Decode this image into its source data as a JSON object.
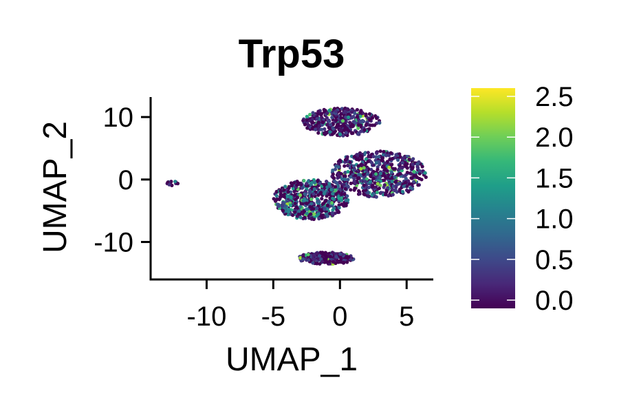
{
  "chart_data": {
    "type": "scatter",
    "title": "Trp53",
    "xlabel": "UMAP_1",
    "ylabel": "UMAP_2",
    "xlim": [
      -14.2,
      7
    ],
    "ylim": [
      -16,
      13.2
    ],
    "xticks": [
      -10,
      -5,
      0,
      5
    ],
    "xtick_labels": [
      "-10",
      "-5",
      "0",
      "5"
    ],
    "yticks": [
      10,
      0,
      -10
    ],
    "ytick_labels": [
      "10",
      "0",
      "-10"
    ],
    "grid": false,
    "legend": "right",
    "colorbar": {
      "min": 0,
      "max": 2.5,
      "ticks": [
        0.0,
        0.5,
        1.0,
        1.5,
        2.0,
        2.5
      ],
      "tick_labels": [
        "0.0",
        "0.5",
        "1.0",
        "1.5",
        "2.0",
        "2.5"
      ],
      "colormap": [
        "#440154",
        "#482878",
        "#3e4989",
        "#31688e",
        "#26828e",
        "#1f9e89",
        "#35b779",
        "#6ece58",
        "#b5de2b",
        "#fde725"
      ]
    },
    "clusters": [
      {
        "cx": 0.1,
        "cy": 9.2,
        "rx": 2.9,
        "ry": 2.2,
        "n": 380,
        "mean": 0.35
      },
      {
        "cx": 2.9,
        "cy": 0.9,
        "rx": 3.6,
        "ry": 3.7,
        "n": 620,
        "mean": 0.5
      },
      {
        "cx": -2.2,
        "cy": -3.2,
        "rx": 2.8,
        "ry": 3.2,
        "n": 560,
        "mean": 0.75
      },
      {
        "cx": -1.0,
        "cy": -12.6,
        "rx": 2.1,
        "ry": 0.95,
        "n": 210,
        "mean": 0.35
      },
      {
        "cx": -12.6,
        "cy": -0.6,
        "rx": 0.45,
        "ry": 0.4,
        "n": 12,
        "mean": 0.4
      }
    ]
  }
}
